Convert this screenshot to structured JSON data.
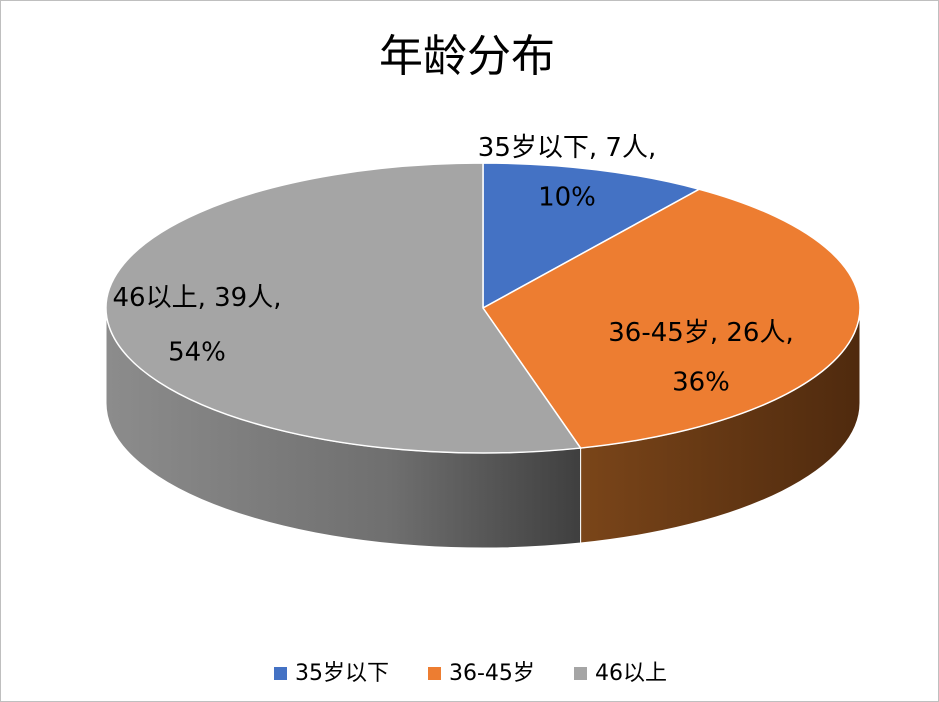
{
  "chart_data": {
    "type": "pie3d",
    "title": "年龄分布",
    "categories": [
      "35岁以下",
      "36-45岁",
      "46以上"
    ],
    "values": [
      7,
      26,
      39
    ],
    "value_labels": [
      "7人",
      "26人",
      "39人"
    ],
    "percentages": [
      10,
      36,
      54
    ],
    "percentage_labels": [
      "10%",
      "36%",
      "54%"
    ],
    "label_separator": ", ",
    "colors": [
      "#4472c4",
      "#ed7d31",
      "#a5a5a5"
    ],
    "legend": "bottom"
  }
}
